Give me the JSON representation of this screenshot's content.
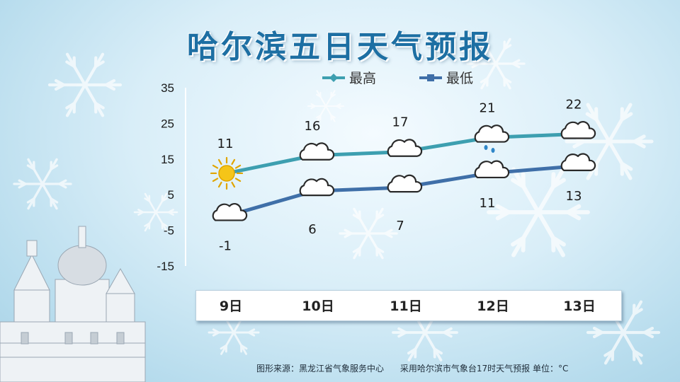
{
  "title": "哈尔滨五日天气预报",
  "footer": {
    "source": "图形来源：黑龙江省气象服务中心",
    "note": "采用哈尔滨市气象台17时天气预报 单位：°C"
  },
  "colors": {
    "high": "#3d9fb0",
    "low": "#3f6fa8",
    "title": "#1d6fa3",
    "sun": "#f5c518"
  },
  "chart_data": {
    "type": "line",
    "categories": [
      "9日",
      "10日",
      "11日",
      "12日",
      "13日"
    ],
    "ylim": [
      -15,
      35
    ],
    "yticks": [
      "35",
      "25",
      "15",
      "5",
      "-5",
      "-15"
    ],
    "legend_position": "top",
    "series": [
      {
        "name": "最高",
        "values": [
          11,
          16,
          17,
          21,
          22
        ],
        "icons": [
          "sun-icon",
          "cloud-icon",
          "cloud-icon",
          "cloud-rain-icon",
          "cloud-icon"
        ]
      },
      {
        "name": "最低",
        "values": [
          -1,
          6,
          7,
          11,
          13
        ],
        "icons": [
          "cloud-icon",
          "cloud-icon",
          "cloud-icon",
          "cloud-icon",
          "cloud-icon"
        ]
      }
    ]
  }
}
